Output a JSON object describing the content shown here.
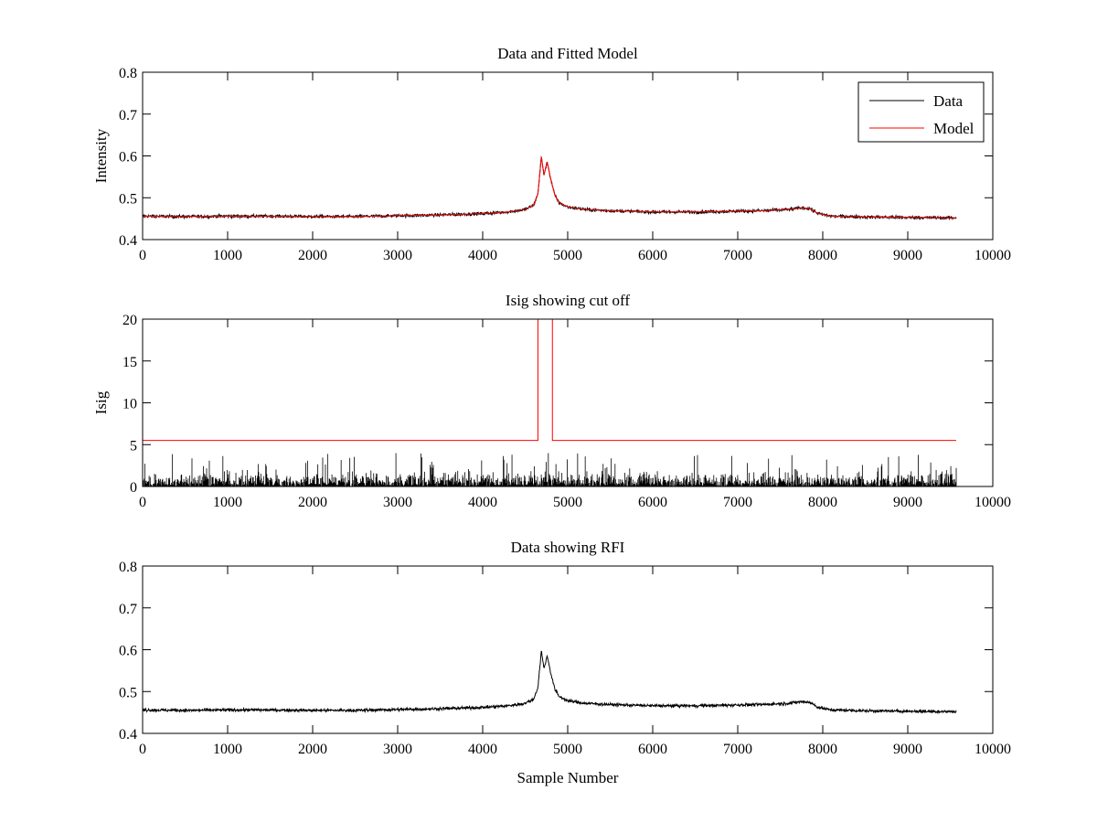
{
  "figure": {
    "background": "#ffffff",
    "colors": {
      "data": "#000000",
      "model": "#ff0000",
      "cutoff": "#ff0000",
      "isig": "#000000"
    }
  },
  "chart_data": [
    {
      "type": "line",
      "title": "Data and Fitted Model",
      "xlabel": "",
      "ylabel": "Intensity",
      "xlim": [
        0,
        10000
      ],
      "ylim": [
        0.4,
        0.8
      ],
      "xticks": [
        0,
        1000,
        2000,
        3000,
        4000,
        5000,
        6000,
        7000,
        8000,
        9000,
        10000
      ],
      "yticks": [
        0.4,
        0.5,
        0.6,
        0.7,
        0.8
      ],
      "ytick_labels": [
        "0.4",
        "0.5",
        "0.6",
        "0.7",
        "0.8"
      ],
      "grid": false,
      "legend": {
        "placement": "top-right",
        "entries": [
          "Data",
          "Model"
        ]
      },
      "series": [
        {
          "name": "Data",
          "color": "#000000",
          "noise": 0.006,
          "x": [
            0,
            500,
            1000,
            1500,
            2000,
            2500,
            3000,
            3500,
            4000,
            4300,
            4500,
            4600,
            4650,
            4690,
            4720,
            4760,
            4800,
            4850,
            4900,
            5000,
            5200,
            5500,
            6000,
            6500,
            7000,
            7300,
            7600,
            7750,
            7850,
            7950,
            8100,
            8500,
            9000,
            9570
          ],
          "y": [
            0.456,
            0.455,
            0.456,
            0.456,
            0.455,
            0.455,
            0.457,
            0.459,
            0.462,
            0.466,
            0.472,
            0.482,
            0.51,
            0.598,
            0.555,
            0.585,
            0.545,
            0.505,
            0.488,
            0.478,
            0.472,
            0.469,
            0.466,
            0.466,
            0.468,
            0.469,
            0.472,
            0.476,
            0.474,
            0.462,
            0.456,
            0.454,
            0.453,
            0.452
          ]
        },
        {
          "name": "Model",
          "color": "#ff0000",
          "x": [
            0,
            500,
            1000,
            1500,
            2000,
            2500,
            3000,
            3500,
            4000,
            4300,
            4500,
            4600,
            4650,
            4690,
            4720,
            4760,
            4800,
            4850,
            4900,
            5000,
            5200,
            5500,
            6000,
            6500,
            7000,
            7300,
            7600,
            7750,
            7850,
            7950,
            8100,
            8500,
            9000,
            9570
          ],
          "y": [
            0.456,
            0.455,
            0.456,
            0.456,
            0.455,
            0.455,
            0.457,
            0.459,
            0.462,
            0.466,
            0.472,
            0.482,
            0.51,
            0.598,
            0.555,
            0.585,
            0.545,
            0.505,
            0.488,
            0.478,
            0.472,
            0.469,
            0.466,
            0.466,
            0.468,
            0.469,
            0.472,
            0.476,
            0.474,
            0.462,
            0.456,
            0.454,
            0.453,
            0.452
          ]
        }
      ]
    },
    {
      "type": "line",
      "title": "Isig showing cut off",
      "xlabel": "",
      "ylabel": "Isig",
      "xlim": [
        0,
        10000
      ],
      "ylim": [
        0,
        20
      ],
      "xticks": [
        0,
        1000,
        2000,
        3000,
        4000,
        5000,
        6000,
        7000,
        8000,
        9000,
        10000
      ],
      "yticks": [
        0,
        5,
        10,
        15,
        20
      ],
      "ytick_labels": [
        "0",
        "5",
        "10",
        "15",
        "20"
      ],
      "grid": false,
      "series": [
        {
          "color": "#000000",
          "style": "noise",
          "xrange": [
            0,
            9570
          ],
          "typical_max": 2.0,
          "peak_max": 4.0,
          "points": 1500
        },
        {
          "color": "#ff0000",
          "x": [
            0,
            4650,
            4650,
            4820,
            4820,
            9570
          ],
          "y": [
            5.5,
            5.5,
            20,
            20,
            5.5,
            5.5
          ]
        }
      ]
    },
    {
      "type": "line",
      "title": "Data showing RFI",
      "xlabel": "Sample Number",
      "ylabel": "",
      "xlim": [
        0,
        10000
      ],
      "ylim": [
        0.4,
        0.8
      ],
      "xticks": [
        0,
        1000,
        2000,
        3000,
        4000,
        5000,
        6000,
        7000,
        8000,
        9000,
        10000
      ],
      "yticks": [
        0.4,
        0.5,
        0.6,
        0.7,
        0.8
      ],
      "ytick_labels": [
        "0.4",
        "0.5",
        "0.6",
        "0.7",
        "0.8"
      ],
      "grid": false,
      "series": [
        {
          "color": "#000000",
          "noise": 0.006,
          "x": [
            0,
            500,
            1000,
            1500,
            2000,
            2500,
            3000,
            3500,
            4000,
            4300,
            4500,
            4600,
            4650,
            4690,
            4720,
            4760,
            4800,
            4850,
            4900,
            5000,
            5200,
            5500,
            6000,
            6500,
            7000,
            7300,
            7600,
            7750,
            7850,
            7950,
            8100,
            8500,
            9000,
            9570
          ],
          "y": [
            0.456,
            0.455,
            0.456,
            0.456,
            0.455,
            0.455,
            0.457,
            0.459,
            0.462,
            0.466,
            0.472,
            0.482,
            0.51,
            0.598,
            0.555,
            0.585,
            0.545,
            0.505,
            0.488,
            0.478,
            0.472,
            0.469,
            0.466,
            0.466,
            0.468,
            0.469,
            0.472,
            0.476,
            0.474,
            0.462,
            0.456,
            0.454,
            0.453,
            0.452
          ]
        }
      ]
    }
  ]
}
